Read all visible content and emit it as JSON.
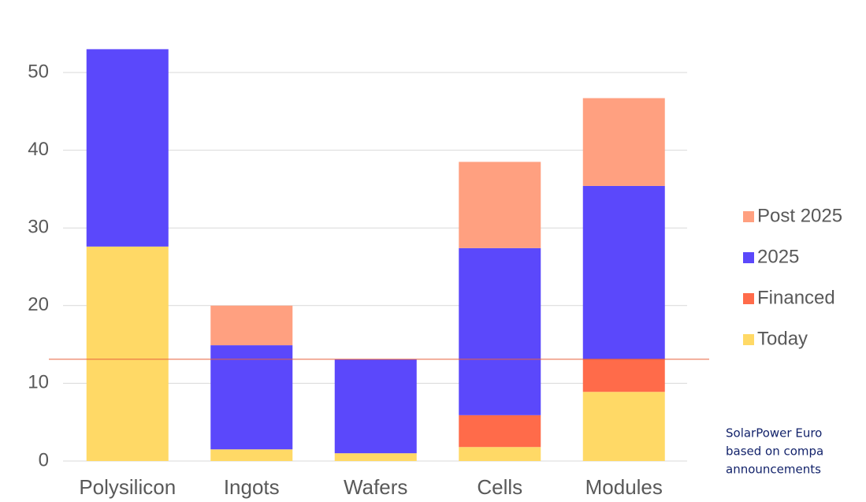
{
  "chart_data": {
    "type": "stacked_bar",
    "categories": [
      "Polysilicon",
      "Ingots",
      "Wafers",
      "Cells",
      "Modules"
    ],
    "series": [
      {
        "name": "Today",
        "color": "#ffd966",
        "values": [
          27.6,
          1.5,
          1.0,
          1.8,
          8.9
        ]
      },
      {
        "name": "Financed",
        "color": "#ff6b4a",
        "values": [
          0,
          0,
          0,
          4.1,
          4.2
        ]
      },
      {
        "name": "2025",
        "color": "#5b48fb",
        "values": [
          25.4,
          13.4,
          12.1,
          21.5,
          22.3
        ]
      },
      {
        "name": "Post 2025",
        "color": "#ffa080",
        "values": [
          0,
          5.1,
          0,
          11.1,
          11.3
        ]
      }
    ],
    "ylim": [
      0,
      60
    ],
    "yticks": [
      0,
      10,
      20,
      30,
      40,
      50,
      60
    ],
    "grid": true,
    "reference_line": {
      "value": 13.1,
      "color": "#e8603c"
    },
    "legend": "right",
    "annotation": [
      "SolarPower Euro",
      "based on compa",
      "announcements"
    ]
  }
}
